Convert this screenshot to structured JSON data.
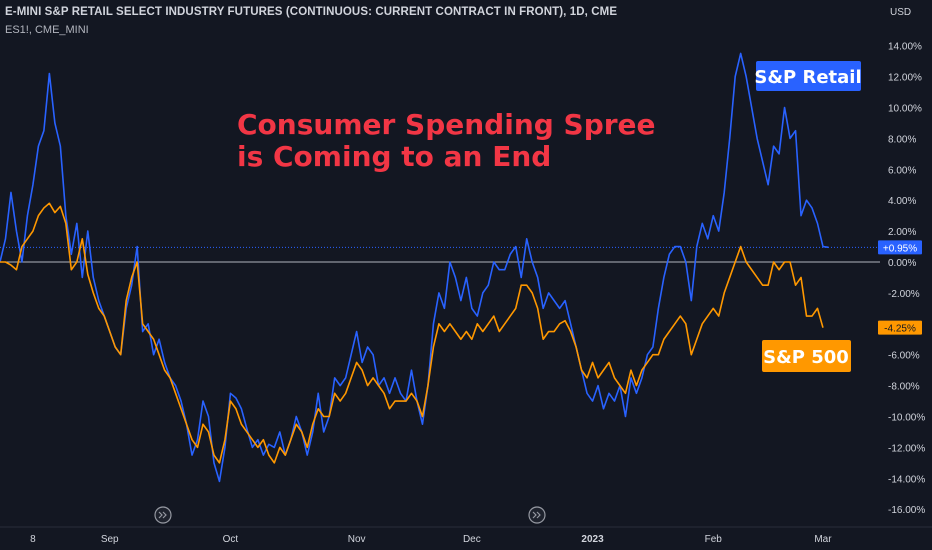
{
  "header": {
    "title": "E-MINI S&P RETAIL SELECT INDUSTRY FUTURES (CONTINUOUS: CURRENT CONTRACT IN FRONT), 1D, CME",
    "subtitle": "ES1!, CME_MINI"
  },
  "annotation": {
    "lines": [
      "Consumer Spending Spree",
      "is Coming to an End"
    ],
    "color": "#f23645"
  },
  "colors": {
    "background": "#131722",
    "retail": "#2962ff",
    "sp500": "#ff9800",
    "text": "#d1d4dc"
  },
  "chart_data": {
    "type": "line",
    "title": "",
    "y_axis": {
      "unit": "USD",
      "range": [
        -16.5,
        15
      ],
      "ticks": [
        14,
        12,
        10,
        8,
        6,
        4,
        2,
        0,
        -2,
        -4,
        -6,
        -8,
        -10,
        -12,
        -14,
        -16
      ],
      "tick_labels": [
        "14.00%",
        "12.00%",
        "10.00%",
        "8.00%",
        "6.00%",
        "4.00%",
        "2.00%",
        "0.00%",
        "-2.00%",
        "-4.00%",
        "-6.00%",
        "-8.00%",
        "-10.00%",
        "-12.00%",
        "-14.00%",
        "-16.00%"
      ]
    },
    "x_axis": {
      "range": [
        0,
        148
      ],
      "ticks": [
        {
          "x": 6,
          "label": "8",
          "bold": false
        },
        {
          "x": 20,
          "label": "Sep",
          "bold": false
        },
        {
          "x": 42,
          "label": "Oct",
          "bold": false
        },
        {
          "x": 65,
          "label": "Nov",
          "bold": false
        },
        {
          "x": 86,
          "label": "Dec",
          "bold": false
        },
        {
          "x": 108,
          "label": "2023",
          "bold": true
        },
        {
          "x": 130,
          "label": "Feb",
          "bold": false
        },
        {
          "x": 150,
          "label": "Mar",
          "bold": false
        }
      ]
    },
    "series": [
      {
        "name": "S&P Retail",
        "color": "#2962ff",
        "last_value_label": "+0.95%",
        "values": [
          0,
          1.5,
          4.5,
          2,
          0,
          3,
          5,
          7.5,
          8.5,
          12.2,
          9,
          7.5,
          3,
          0.5,
          2.5,
          -1,
          2,
          -1,
          -2.5,
          -3.5,
          -4.5,
          -5.5,
          -6,
          -3,
          -1.5,
          1,
          -4.5,
          -4,
          -6,
          -5,
          -6.5,
          -7.5,
          -8,
          -9,
          -10.5,
          -12.5,
          -11.5,
          -9,
          -10,
          -13,
          -14.2,
          -12,
          -8.5,
          -8.8,
          -9.5,
          -10.8,
          -12,
          -11.5,
          -12.5,
          -11.8,
          -12,
          -11,
          -12.5,
          -11.5,
          -10,
          -11,
          -12.5,
          -11,
          -8.5,
          -11,
          -10,
          -7.5,
          -8,
          -7.5,
          -6,
          -4.5,
          -6.5,
          -5.5,
          -6,
          -8,
          -7.5,
          -8.5,
          -7.5,
          -8.5,
          -9,
          -7,
          -9,
          -10.5,
          -8,
          -4,
          -2,
          -3,
          0,
          -1,
          -2.5,
          -1,
          -3,
          -3.5,
          -2,
          -1.5,
          0,
          -0.5,
          -0.5,
          0.5,
          1,
          -1,
          1.5,
          0,
          -1,
          -3,
          -2,
          -2.5,
          -3,
          -2.5,
          -4,
          -5.5,
          -7,
          -8.5,
          -9,
          -8,
          -9.5,
          -8.5,
          -9,
          -8,
          -10,
          -7.5,
          -8.5,
          -7.5,
          -6,
          -5.5,
          -3,
          -1,
          0.5,
          1,
          1,
          0,
          -2.5,
          1,
          2.5,
          1.5,
          3,
          2,
          4.5,
          8,
          12,
          13.5,
          12,
          10,
          8,
          6.5,
          5,
          7.5,
          7,
          10,
          8,
          8.5,
          3,
          4,
          3.5,
          2.5,
          1,
          0.95
        ]
      },
      {
        "name": "S&P 500",
        "color": "#ff9800",
        "last_value_label": "-4.25%",
        "values": [
          0,
          0,
          -0.2,
          -0.5,
          1,
          1.5,
          2,
          3,
          3.5,
          3.8,
          3.2,
          3.6,
          2.5,
          -0.5,
          0,
          1.5,
          -0.8,
          -2,
          -3,
          -3.5,
          -4.5,
          -5.5,
          -6,
          -2.5,
          -1,
          0,
          -4,
          -4.5,
          -5,
          -6,
          -7,
          -7.5,
          -8.5,
          -9.5,
          -10.5,
          -11.5,
          -12,
          -10.5,
          -11,
          -12.5,
          -13,
          -11.5,
          -9,
          -9.5,
          -10.5,
          -11,
          -11.5,
          -12,
          -11.5,
          -12.5,
          -13,
          -12,
          -12.5,
          -11.5,
          -10.5,
          -11,
          -12,
          -10.5,
          -9.5,
          -10,
          -10,
          -8.5,
          -9,
          -8.5,
          -7.5,
          -6.5,
          -7,
          -8,
          -7.5,
          -8,
          -8.5,
          -9.5,
          -9,
          -9,
          -9,
          -8.5,
          -9,
          -10,
          -8,
          -5.5,
          -4,
          -4.5,
          -4,
          -4.5,
          -5,
          -4.5,
          -5,
          -4,
          -4.5,
          -4,
          -3.5,
          -4.5,
          -4,
          -3.5,
          -3,
          -1.5,
          -1.5,
          -2,
          -3,
          -5,
          -4.5,
          -4.5,
          -4,
          -3.8,
          -4.5,
          -5.5,
          -7,
          -7.5,
          -6.5,
          -7.5,
          -7,
          -6.5,
          -7.5,
          -8,
          -8.5,
          -7,
          -8,
          -7,
          -6.5,
          -6,
          -6,
          -5,
          -4.5,
          -4,
          -3.5,
          -4,
          -6,
          -5,
          -4,
          -3.5,
          -3,
          -3.5,
          -2,
          -1,
          0,
          1,
          0,
          -0.5,
          -1,
          -1.5,
          -1.5,
          0,
          -0.5,
          0,
          0,
          -1.5,
          -1,
          -3.5,
          -3.5,
          -3,
          -4.25
        ]
      }
    ],
    "legend_labels": [
      {
        "text": "S&P Retail",
        "color": "#2962ff"
      },
      {
        "text": "S&P 500",
        "color": "#ff9800"
      }
    ]
  }
}
